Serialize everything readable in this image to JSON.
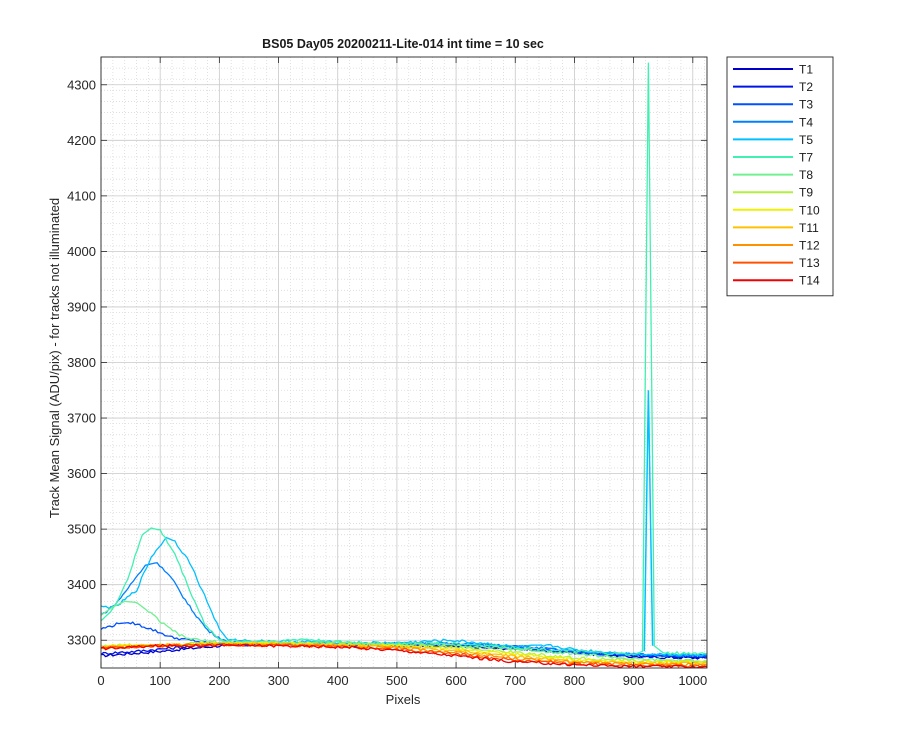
{
  "chart_data": {
    "type": "line",
    "title": "BS05 Day05 20200211-Lite-014 int time = 10 sec",
    "xlabel": "Pixels",
    "ylabel": "Track Mean Signal (ADU/pix) - for tracks not illuminated",
    "xlim": [
      0,
      1024
    ],
    "ylim": [
      3250,
      4350
    ],
    "x_ticks": [
      0,
      100,
      200,
      300,
      400,
      500,
      600,
      700,
      800,
      900,
      1000
    ],
    "x_tick_labels": [
      "0",
      "100",
      "200",
      "300",
      "400",
      "500",
      "600",
      "700",
      "800",
      "900",
      "1000"
    ],
    "y_ticks": [
      3300,
      3400,
      3500,
      3600,
      3700,
      3800,
      3900,
      4000,
      4100,
      4200,
      4300
    ],
    "y_tick_labels": [
      "3300",
      "3400",
      "3500",
      "3600",
      "3700",
      "3800",
      "3900",
      "4000",
      "4100",
      "4200",
      "4300"
    ],
    "grid": "major and minor (dotted)",
    "legend_position": "outside-top-right",
    "series": [
      {
        "name": "T1",
        "color": "#0000c8",
        "points": [
          [
            0,
            3272
          ],
          [
            100,
            3280
          ],
          [
            200,
            3290
          ],
          [
            300,
            3293
          ],
          [
            400,
            3292
          ],
          [
            500,
            3290
          ],
          [
            600,
            3288
          ],
          [
            700,
            3285
          ],
          [
            800,
            3278
          ],
          [
            900,
            3270
          ],
          [
            1024,
            3268
          ]
        ]
      },
      {
        "name": "T2",
        "color": "#0014e6",
        "points": [
          [
            0,
            3276
          ],
          [
            60,
            3280
          ],
          [
            130,
            3287
          ],
          [
            200,
            3293
          ],
          [
            300,
            3293
          ],
          [
            400,
            3293
          ],
          [
            500,
            3292
          ],
          [
            600,
            3290
          ],
          [
            700,
            3285
          ],
          [
            800,
            3278
          ],
          [
            900,
            3272
          ],
          [
            1024,
            3270
          ]
        ]
      },
      {
        "name": "T3",
        "color": "#0050ff",
        "points": [
          [
            0,
            3320
          ],
          [
            30,
            3330
          ],
          [
            50,
            3332
          ],
          [
            80,
            3322
          ],
          [
            120,
            3305
          ],
          [
            180,
            3295
          ],
          [
            220,
            3292
          ],
          [
            300,
            3294
          ],
          [
            400,
            3293
          ],
          [
            500,
            3292
          ],
          [
            600,
            3293
          ],
          [
            700,
            3288
          ],
          [
            800,
            3278
          ],
          [
            900,
            3273
          ],
          [
            1024,
            3272
          ]
        ]
      },
      {
        "name": "T4",
        "color": "#0080ff",
        "points": [
          [
            0,
            3345
          ],
          [
            25,
            3365
          ],
          [
            50,
            3400
          ],
          [
            75,
            3435
          ],
          [
            95,
            3440
          ],
          [
            120,
            3410
          ],
          [
            150,
            3360
          ],
          [
            180,
            3318
          ],
          [
            210,
            3298
          ],
          [
            300,
            3294
          ],
          [
            400,
            3294
          ],
          [
            500,
            3294
          ],
          [
            600,
            3294
          ],
          [
            700,
            3290
          ],
          [
            800,
            3280
          ],
          [
            900,
            3275
          ],
          [
            1024,
            3272
          ]
        ]
      },
      {
        "name": "T5",
        "color": "#00c0ff",
        "points": [
          [
            0,
            3360
          ],
          [
            25,
            3360
          ],
          [
            60,
            3390
          ],
          [
            85,
            3450
          ],
          [
            110,
            3485
          ],
          [
            125,
            3478
          ],
          [
            150,
            3440
          ],
          [
            175,
            3380
          ],
          [
            200,
            3320
          ],
          [
            215,
            3300
          ],
          [
            300,
            3298
          ],
          [
            400,
            3296
          ],
          [
            500,
            3295
          ],
          [
            590,
            3300
          ],
          [
            650,
            3294
          ],
          [
            700,
            3288
          ],
          [
            760,
            3290
          ],
          [
            800,
            3283
          ],
          [
            900,
            3275
          ],
          [
            1024,
            3274
          ]
        ]
      },
      {
        "name": "T7",
        "color": "#40f0b0",
        "points": [
          [
            0,
            3335
          ],
          [
            20,
            3355
          ],
          [
            45,
            3410
          ],
          [
            70,
            3490
          ],
          [
            85,
            3502
          ],
          [
            100,
            3498
          ],
          [
            125,
            3455
          ],
          [
            150,
            3390
          ],
          [
            175,
            3330
          ],
          [
            200,
            3300
          ],
          [
            230,
            3298
          ],
          [
            300,
            3298
          ],
          [
            340,
            3302
          ],
          [
            400,
            3297
          ],
          [
            500,
            3294
          ],
          [
            600,
            3294
          ],
          [
            700,
            3287
          ],
          [
            800,
            3280
          ],
          [
            900,
            3274
          ],
          [
            915,
            3280
          ],
          [
            925,
            4340
          ],
          [
            935,
            3290
          ],
          [
            950,
            3277
          ],
          [
            1024,
            3276
          ]
        ]
      },
      {
        "name": "T8",
        "color": "#70f090",
        "points": [
          [
            0,
            3345
          ],
          [
            20,
            3360
          ],
          [
            40,
            3370
          ],
          [
            60,
            3368
          ],
          [
            80,
            3352
          ],
          [
            110,
            3325
          ],
          [
            140,
            3305
          ],
          [
            180,
            3298
          ],
          [
            220,
            3296
          ],
          [
            300,
            3296
          ],
          [
            400,
            3295
          ],
          [
            500,
            3293
          ],
          [
            600,
            3291
          ],
          [
            700,
            3284
          ],
          [
            800,
            3276
          ],
          [
            900,
            3266
          ],
          [
            1024,
            3262
          ]
        ]
      },
      {
        "name": "T9",
        "color": "#b0f040",
        "points": [
          [
            0,
            3290
          ],
          [
            100,
            3293
          ],
          [
            200,
            3295
          ],
          [
            300,
            3295
          ],
          [
            400,
            3293
          ],
          [
            500,
            3291
          ],
          [
            600,
            3287
          ],
          [
            700,
            3278
          ],
          [
            800,
            3268
          ],
          [
            900,
            3263
          ],
          [
            1024,
            3262
          ]
        ]
      },
      {
        "name": "T10",
        "color": "#f0f000",
        "points": [
          [
            0,
            3289
          ],
          [
            100,
            3292
          ],
          [
            200,
            3294
          ],
          [
            300,
            3294
          ],
          [
            400,
            3292
          ],
          [
            500,
            3290
          ],
          [
            600,
            3284
          ],
          [
            700,
            3275
          ],
          [
            800,
            3265
          ],
          [
            900,
            3261
          ],
          [
            1024,
            3260
          ]
        ]
      },
      {
        "name": "T11",
        "color": "#ffc000",
        "points": [
          [
            0,
            3288
          ],
          [
            100,
            3291
          ],
          [
            200,
            3293
          ],
          [
            300,
            3293
          ],
          [
            400,
            3291
          ],
          [
            500,
            3288
          ],
          [
            600,
            3281
          ],
          [
            700,
            3271
          ],
          [
            800,
            3262
          ],
          [
            900,
            3259
          ],
          [
            1024,
            3258
          ]
        ]
      },
      {
        "name": "T12",
        "color": "#ff9000",
        "points": [
          [
            0,
            3287
          ],
          [
            100,
            3290
          ],
          [
            200,
            3292
          ],
          [
            300,
            3292
          ],
          [
            400,
            3290
          ],
          [
            500,
            3286
          ],
          [
            600,
            3278
          ],
          [
            700,
            3267
          ],
          [
            800,
            3260
          ],
          [
            900,
            3257
          ],
          [
            1024,
            3256
          ]
        ]
      },
      {
        "name": "T13",
        "color": "#ff5000",
        "points": [
          [
            0,
            3286
          ],
          [
            100,
            3290
          ],
          [
            200,
            3292
          ],
          [
            300,
            3291
          ],
          [
            400,
            3289
          ],
          [
            500,
            3284
          ],
          [
            600,
            3275
          ],
          [
            700,
            3264
          ],
          [
            800,
            3258
          ],
          [
            900,
            3255
          ],
          [
            1024,
            3254
          ]
        ]
      },
      {
        "name": "T14",
        "color": "#f00000",
        "points": [
          [
            0,
            3285
          ],
          [
            100,
            3290
          ],
          [
            200,
            3291
          ],
          [
            300,
            3290
          ],
          [
            400,
            3288
          ],
          [
            500,
            3282
          ],
          [
            600,
            3272
          ],
          [
            700,
            3261
          ],
          [
            800,
            3256
          ],
          [
            900,
            3253
          ],
          [
            1024,
            3252
          ]
        ]
      }
    ],
    "annotations": [
      {
        "series": "T5",
        "description": "narrow secondary peak",
        "points": [
          [
            918,
            3280
          ],
          [
            925,
            3750
          ],
          [
            932,
            3290
          ]
        ]
      }
    ]
  }
}
